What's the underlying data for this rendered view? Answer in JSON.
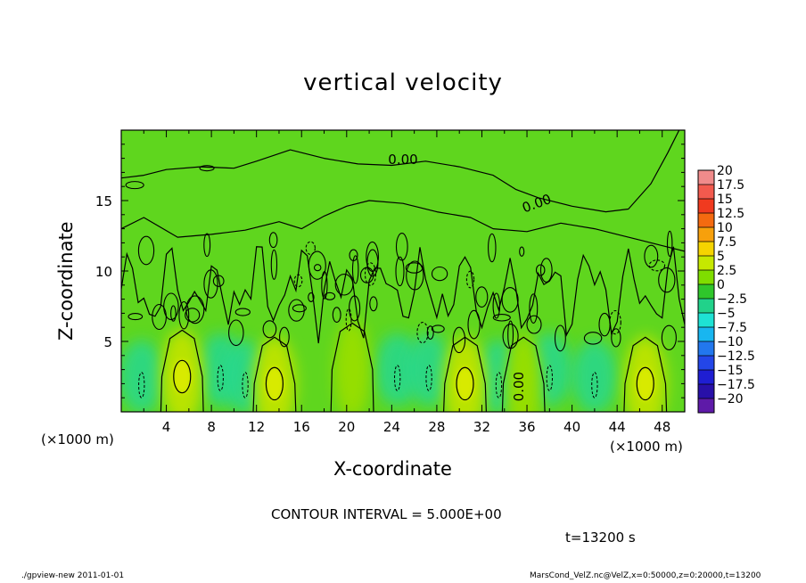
{
  "chart_data": {
    "type": "heatmap",
    "title": "vertical velocity",
    "xlabel": "X-coordinate",
    "ylabel": "Z-coordinate",
    "x_unit": "(×1000 m)",
    "xlim": [
      0,
      50
    ],
    "ylim": [
      0,
      20
    ],
    "x_ticks": [
      "4",
      "8",
      "12",
      "16",
      "20",
      "24",
      "28",
      "32",
      "36",
      "40",
      "44",
      "48"
    ],
    "y_ticks": [
      "5",
      "10",
      "15"
    ],
    "contour_labels": [
      "0.00",
      "0.00",
      "0.00"
    ],
    "colorbar": {
      "levels": [
        "20",
        "17.5",
        "15",
        "12.5",
        "10",
        "7.5",
        "5",
        "2.5",
        "0",
        "-2.5",
        "-5",
        "-7.5",
        "-10",
        "-12.5",
        "-15",
        "-17.5",
        "-20"
      ],
      "colors": [
        "#f08b8b",
        "#f25a4e",
        "#f03a1f",
        "#f46a10",
        "#f7a00c",
        "#f5d400",
        "#c6e800",
        "#7fdd00",
        "#2fc62b",
        "#21d28a",
        "#1ee2d4",
        "#18b6f0",
        "#2277ee",
        "#2346e8",
        "#1f1ed2",
        "#2810a8",
        "#5e1aa8"
      ]
    },
    "updrafts": [
      {
        "x": 5.4,
        "z": 2.5,
        "w": 5
      },
      {
        "x": 13.6,
        "z": 2.0,
        "w": 5
      },
      {
        "x": 20.5,
        "z": 3.0,
        "w": 2.5
      },
      {
        "x": 30.5,
        "z": 2.0,
        "w": 5
      },
      {
        "x": 35.7,
        "z": 2.0,
        "w": 2.5
      },
      {
        "x": 46.5,
        "z": 2.0,
        "w": 5
      }
    ],
    "downdrafts": [
      {
        "x": 1.8,
        "z": 2.5,
        "w": -5
      },
      {
        "x": 8.8,
        "z": 3.0,
        "w": -5
      },
      {
        "x": 11.0,
        "z": 2.5,
        "w": -5
      },
      {
        "x": 24.5,
        "z": 3.0,
        "w": -5
      },
      {
        "x": 27.3,
        "z": 3.0,
        "w": -5
      },
      {
        "x": 33.5,
        "z": 2.5,
        "w": -5
      },
      {
        "x": 38.0,
        "z": 3.0,
        "w": -2.5
      },
      {
        "x": 42.0,
        "z": 2.5,
        "w": -5
      }
    ],
    "contour_interval_text": "CONTOUR INTERVAL = 5.000E+00",
    "time_text": "t=13200 s"
  },
  "footer": {
    "left": "./gpview-new   2011-01-01",
    "right": "MarsCond_VelZ.nc@VelZ,x=0:50000,z=0:20000,t=13200"
  }
}
